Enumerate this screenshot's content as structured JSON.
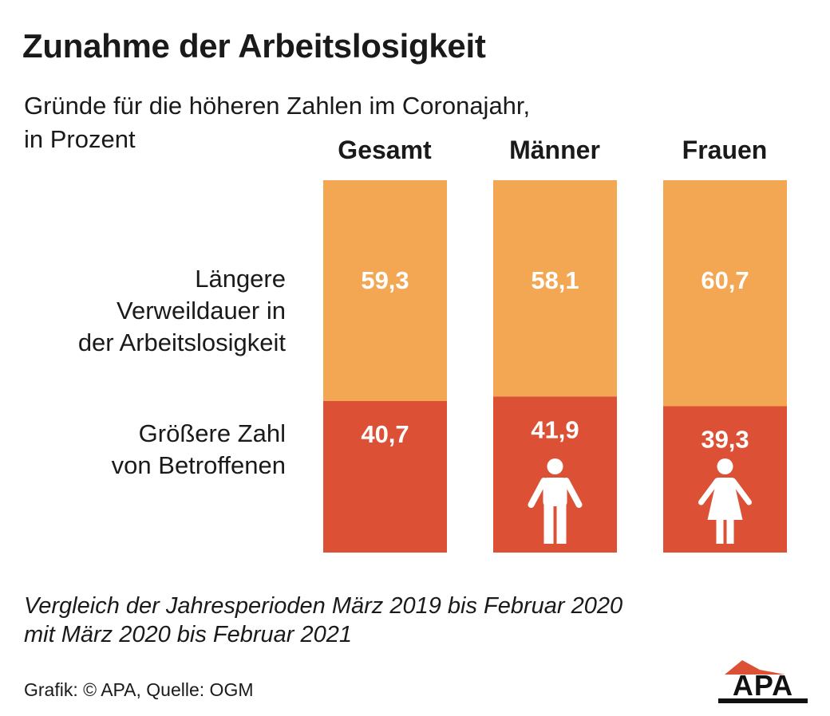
{
  "title": "Zunahme der Arbeitslosigkeit",
  "subtitle_line1": "Gründe für die höheren Zahlen im Coronajahr,",
  "subtitle_line2": "in Prozent",
  "note_line1": "Vergleich der Jahresperioden März 2019 bis Februar 2020",
  "note_line2": "mit März 2020 bis Februar 2021",
  "source": "Grafik: © APA, Quelle: OGM",
  "logo_text": "APA",
  "chart_data": {
    "type": "bar",
    "stacked": true,
    "normalized_to": 100,
    "categories": [
      "Gesamt",
      "Männer",
      "Frauen"
    ],
    "series": [
      {
        "name_lines": [
          "Längere",
          "Verweildauer in",
          "der Arbeitslosigkeit"
        ],
        "values": [
          59.3,
          58.1,
          60.7
        ],
        "value_labels": [
          "59,3",
          "58,1",
          "60,7"
        ],
        "color": "#F3A753"
      },
      {
        "name_lines": [
          "Größere Zahl",
          "von Betroffenen"
        ],
        "values": [
          40.7,
          41.9,
          39.3
        ],
        "value_labels": [
          "40,7",
          "41,9",
          "39,3"
        ],
        "color": "#DC5135"
      }
    ],
    "icons": [
      "",
      "man-icon",
      "woman-icon"
    ]
  }
}
